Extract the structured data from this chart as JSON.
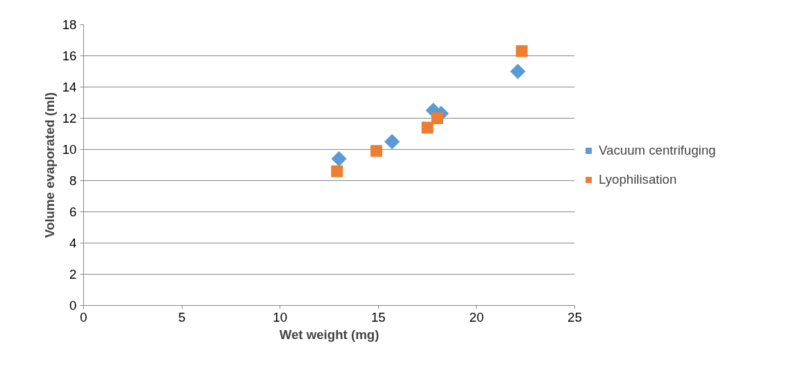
{
  "chart_data": {
    "type": "scatter",
    "xlabel": "Wet weight (mg)",
    "ylabel": "Volume evaporated (ml)",
    "xlim": [
      0,
      25
    ],
    "xticks": [
      0,
      5,
      10,
      15,
      20,
      25
    ],
    "ylim": [
      0,
      18
    ],
    "yticks": [
      0,
      2,
      4,
      6,
      8,
      10,
      12,
      14,
      16,
      18
    ],
    "grid": "y",
    "legend": "right",
    "series": [
      {
        "name": "Vacuum centrifuging",
        "color": "#5b9bd5",
        "marker": "diamond",
        "x": [
          13.0,
          15.7,
          17.8,
          18.2,
          22.1
        ],
        "values": [
          9.4,
          10.5,
          12.5,
          12.3,
          15.0
        ]
      },
      {
        "name": "Lyophilisation",
        "color": "#ed7d31",
        "marker": "square",
        "x": [
          12.9,
          14.9,
          17.5,
          18.0,
          22.3
        ],
        "values": [
          8.6,
          9.9,
          11.4,
          12.0,
          16.3
        ]
      }
    ]
  }
}
